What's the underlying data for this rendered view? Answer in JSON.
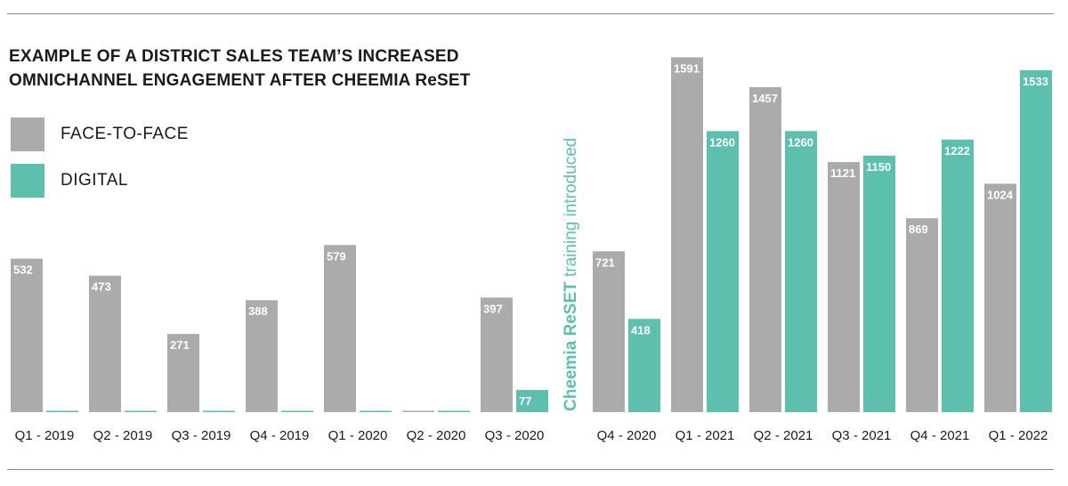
{
  "colors": {
    "face_to_face": "#ababab",
    "digital": "#5dbfae",
    "rule": "#8a8a8a"
  },
  "chart_data": {
    "type": "bar",
    "title_line1": "EXAMPLE OF A DISTRICT SALES TEAM’S INCREASED",
    "title_line2": "OMNICHANNEL ENGAGEMENT AFTER CHEEMIA ReSET",
    "xlabel": "",
    "ylabel": "",
    "legend_position": "top-left",
    "grid": false,
    "categories": [
      "Q1 - 2019",
      "Q2 - 2019",
      "Q3 - 2019",
      "Q4 - 2019",
      "Q1 - 2020",
      "Q2 - 2020",
      "Q3 - 2020",
      "Q4 - 2020",
      "Q1 - 2021",
      "Q2 - 2021",
      "Q3 - 2021",
      "Q4 - 2021",
      "Q1 - 2022"
    ],
    "series": [
      {
        "name": "FACE-TO-FACE",
        "values": [
          532,
          473,
          271,
          388,
          579,
          0,
          397,
          721,
          1591,
          1457,
          1121,
          869,
          1024
        ]
      },
      {
        "name": "DIGITAL",
        "values": [
          0,
          0,
          0,
          0,
          0,
          0,
          77,
          418,
          1260,
          1260,
          1150,
          1222,
          1533
        ]
      }
    ],
    "segments": [
      {
        "ylim": [
          0,
          1200
        ],
        "categories": [
          "Q1 - 2019",
          "Q2 - 2019",
          "Q3 - 2019",
          "Q4 - 2019",
          "Q1 - 2020",
          "Q2 - 2020",
          "Q3 - 2020"
        ]
      },
      {
        "ylim": [
          0,
          1700
        ],
        "categories": [
          "Q4 - 2020",
          "Q1 - 2021",
          "Q2 - 2021",
          "Q3 - 2021",
          "Q4 - 2021",
          "Q1 - 2022"
        ]
      }
    ],
    "annotation": {
      "bold": "Cheemia ReSET",
      "rest": " training introduced"
    }
  }
}
